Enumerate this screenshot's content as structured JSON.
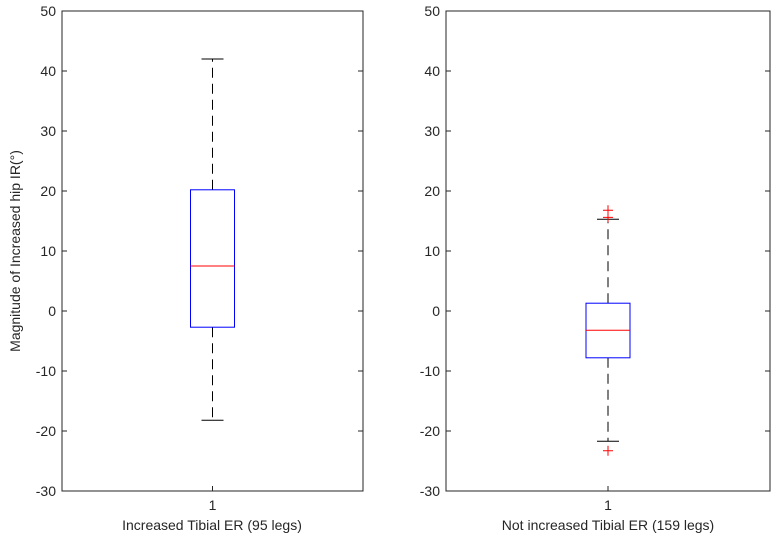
{
  "chart_data": [
    {
      "type": "box",
      "ylabel": "Magnitude of Increased hip IR(°)",
      "xlabel": "Increased Tibial ER (95 legs)",
      "categories": [
        "1"
      ],
      "ylim": [
        -30,
        50
      ],
      "yticks": [
        -30,
        -20,
        -10,
        0,
        10,
        20,
        30,
        40,
        50
      ],
      "box": {
        "whisker_low": -18.2,
        "q1": -2.7,
        "median": 7.5,
        "q3": 20.2,
        "whisker_high": 42
      },
      "outliers": []
    },
    {
      "type": "box",
      "ylabel": "",
      "xlabel": "Not increased Tibial ER (159 legs)",
      "categories": [
        "1"
      ],
      "ylim": [
        -30,
        50
      ],
      "yticks": [
        -30,
        -20,
        -10,
        0,
        10,
        20,
        30,
        40,
        50
      ],
      "box": {
        "whisker_low": -21.7,
        "q1": -7.8,
        "median": -3.2,
        "q3": 1.3,
        "whisker_high": 15.3
      },
      "outliers": [
        16.8,
        15.6,
        -23.3
      ]
    }
  ],
  "colors": {
    "box": "#0000ff",
    "median": "#ff0000",
    "whisker": "#000000",
    "outlier": "#ff0000",
    "axis": "#262626"
  }
}
